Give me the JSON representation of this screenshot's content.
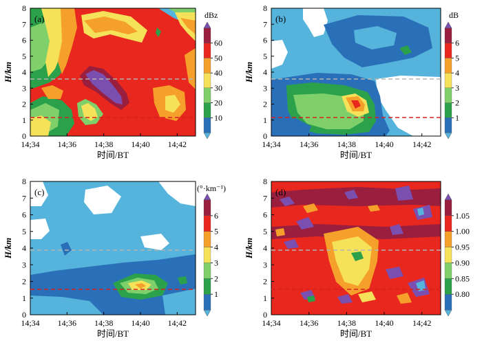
{
  "figure": {
    "xticks": [
      "14:34",
      "14:36",
      "14:38",
      "14:40",
      "14:42"
    ],
    "xticks_fmt": [
      "14;34",
      "14;36",
      "14;38",
      "14;40",
      "14;42"
    ],
    "xlabel": "时间/BT",
    "ylabel": "H/km",
    "yticks": [
      "0",
      "1",
      "2",
      "3",
      "4",
      "5",
      "6",
      "7",
      "8"
    ]
  },
  "chart_data": [
    {
      "type": "heatmap",
      "panel_label": "(a)",
      "unit": "dBz",
      "xlabel": "时间/BT",
      "ylabel": "H/km",
      "xlim": [
        "14:34",
        "14:43"
      ],
      "ylim": [
        0,
        8
      ],
      "colorbar_levels": [
        10,
        20,
        30,
        40,
        50,
        60
      ],
      "colorbar_ticks": [
        "10",
        "20",
        "30",
        "40",
        "50",
        "60"
      ],
      "colors": [
        "#56b4dc",
        "#2a70b8",
        "#2aa14a",
        "#7fd06a",
        "#f5e25a",
        "#f5a02a",
        "#e8281e",
        "#9a1e3e",
        "#7a4fb0"
      ],
      "reference_lines": [
        {
          "h": 3.9,
          "color": "#b4b4b4"
        },
        {
          "h": 1.55,
          "color": "#d62020"
        }
      ]
    },
    {
      "type": "heatmap",
      "panel_label": "(b)",
      "unit": "dB",
      "xlabel": "时间/BT",
      "ylabel": "H/km",
      "xlim": [
        "14:34",
        "14:43"
      ],
      "ylim": [
        0,
        8
      ],
      "colorbar_levels": [
        1,
        2,
        3,
        4,
        5,
        6
      ],
      "colorbar_ticks": [
        "1",
        "2",
        "3",
        "4",
        "5",
        "6"
      ],
      "colors": [
        "#56b4dc",
        "#2a70b8",
        "#2aa14a",
        "#7fd06a",
        "#f5e25a",
        "#f5a02a",
        "#e8281e",
        "#9a1e3e",
        "#7a4fb0"
      ],
      "reference_lines": [
        {
          "h": 3.9,
          "color": "#b4b4b4"
        },
        {
          "h": 1.55,
          "color": "#d62020"
        }
      ]
    },
    {
      "type": "heatmap",
      "panel_label": "(c)",
      "unit": "(°·km⁻¹)",
      "xlabel": "时间/BT",
      "ylabel": "H/km",
      "xlim": [
        "14:34",
        "14:43"
      ],
      "ylim": [
        0,
        8
      ],
      "colorbar_levels": [
        1,
        2,
        3,
        4,
        5,
        6
      ],
      "colorbar_ticks": [
        "1",
        "2",
        "3",
        "4",
        "5",
        "6"
      ],
      "colors": [
        "#56b4dc",
        "#2a70b8",
        "#2aa14a",
        "#7fd06a",
        "#f5e25a",
        "#f5a02a",
        "#e8281e",
        "#9a1e3e",
        "#7a4fb0"
      ],
      "reference_lines": [
        {
          "h": 3.9,
          "color": "#b4b4b4"
        },
        {
          "h": 1.55,
          "color": "#d62020"
        }
      ]
    },
    {
      "type": "heatmap",
      "panel_label": "(d)",
      "unit": "",
      "xlabel": "时间/BT",
      "ylabel": "H/km",
      "xlim": [
        "14:34",
        "14:43"
      ],
      "ylim": [
        0,
        8
      ],
      "colorbar_levels": [
        0.8,
        0.85,
        0.9,
        0.95,
        1.0,
        1.05
      ],
      "colorbar_ticks": [
        "0.80",
        "0.85",
        "0.90",
        "0.95",
        "1.00",
        "1.05"
      ],
      "colors": [
        "#56b4dc",
        "#2a70b8",
        "#2aa14a",
        "#7fd06a",
        "#f5e25a",
        "#f5a02a",
        "#e8281e",
        "#9a1e3e",
        "#7a4fb0"
      ],
      "reference_lines": [
        {
          "h": 3.9,
          "color": "#b4b4b4"
        },
        {
          "h": 1.55,
          "color": "#d62020"
        }
      ]
    }
  ]
}
